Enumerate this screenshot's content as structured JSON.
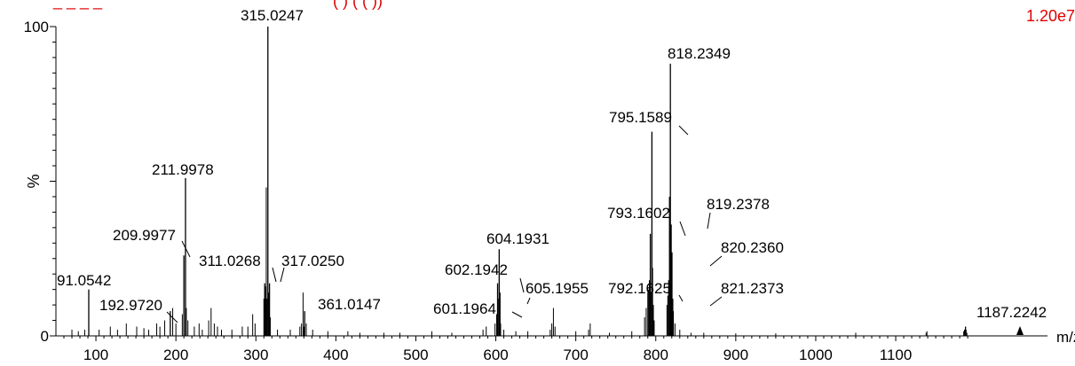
{
  "header": {
    "title_left": "_ _ _ _",
    "title_mid": "(  )   (  (  ))",
    "intensity": "1.20e7",
    "color": "#e00000"
  },
  "chart_data": {
    "type": "bar",
    "xlabel": "m/z",
    "ylabel": "%",
    "xlim": [
      50,
      1200
    ],
    "ylim": [
      0,
      100
    ],
    "x_ticks": [
      100,
      200,
      300,
      400,
      500,
      600,
      700,
      800,
      900,
      1000,
      1100
    ],
    "y_ticks": [
      0,
      100
    ],
    "y_mid_label": "%",
    "peak_color": "#000000",
    "peaks": [
      {
        "mz": 91.0542,
        "value": 15,
        "label": "91.0542"
      },
      {
        "mz": 192.972,
        "value": 8,
        "label": "192.9720"
      },
      {
        "mz": 209.9977,
        "value": 26,
        "label": "209.9977"
      },
      {
        "mz": 211.9978,
        "value": 51,
        "label": "211.9978"
      },
      {
        "mz": 311.0268,
        "value": 17,
        "label": "311.0268"
      },
      {
        "mz": 315.0247,
        "value": 100,
        "label": "315.0247"
      },
      {
        "mz": 317.025,
        "value": 17,
        "label": "317.0250"
      },
      {
        "mz": 361.0147,
        "value": 8,
        "label": "361.0147"
      },
      {
        "mz": 601.1964,
        "value": 7,
        "label": "601.1964"
      },
      {
        "mz": 602.1942,
        "value": 17,
        "label": "602.1942"
      },
      {
        "mz": 604.1931,
        "value": 28,
        "label": "604.1931"
      },
      {
        "mz": 605.1955,
        "value": 14,
        "label": "605.1955"
      },
      {
        "mz": 792.1625,
        "value": 18,
        "label": "792.1625"
      },
      {
        "mz": 793.1602,
        "value": 33,
        "label": "793.1602"
      },
      {
        "mz": 795.1589,
        "value": 66,
        "label": "795.1589"
      },
      {
        "mz": 818.2349,
        "value": 88,
        "label": "818.2349"
      },
      {
        "mz": 819.2378,
        "value": 36,
        "label": "819.2378"
      },
      {
        "mz": 820.236,
        "value": 27,
        "label": "820.2360"
      },
      {
        "mz": 821.2373,
        "value": 12,
        "label": "821.2373"
      },
      {
        "mz": 1187.2242,
        "value": 3,
        "label": "1187.2242"
      }
    ],
    "minor_peaks": [
      {
        "mz": 70,
        "value": 2
      },
      {
        "mz": 78,
        "value": 1.5
      },
      {
        "mz": 86,
        "value": 2
      },
      {
        "mz": 104,
        "value": 2
      },
      {
        "mz": 118,
        "value": 3
      },
      {
        "mz": 127,
        "value": 2
      },
      {
        "mz": 138,
        "value": 4
      },
      {
        "mz": 151,
        "value": 3
      },
      {
        "mz": 160,
        "value": 2.5
      },
      {
        "mz": 166,
        "value": 2
      },
      {
        "mz": 176,
        "value": 4
      },
      {
        "mz": 180,
        "value": 3
      },
      {
        "mz": 186,
        "value": 5
      },
      {
        "mz": 196,
        "value": 9
      },
      {
        "mz": 200,
        "value": 4
      },
      {
        "mz": 208,
        "value": 7
      },
      {
        "mz": 213,
        "value": 9
      },
      {
        "mz": 215,
        "value": 5
      },
      {
        "mz": 223,
        "value": 3
      },
      {
        "mz": 229,
        "value": 4
      },
      {
        "mz": 233,
        "value": 2
      },
      {
        "mz": 241,
        "value": 5
      },
      {
        "mz": 244,
        "value": 9
      },
      {
        "mz": 248,
        "value": 4
      },
      {
        "mz": 252,
        "value": 3
      },
      {
        "mz": 257,
        "value": 2
      },
      {
        "mz": 270,
        "value": 2
      },
      {
        "mz": 283,
        "value": 3
      },
      {
        "mz": 290,
        "value": 3
      },
      {
        "mz": 296,
        "value": 7
      },
      {
        "mz": 299,
        "value": 4
      },
      {
        "mz": 310,
        "value": 12
      },
      {
        "mz": 312,
        "value": 16
      },
      {
        "mz": 313,
        "value": 48
      },
      {
        "mz": 314,
        "value": 12
      },
      {
        "mz": 316,
        "value": 14
      },
      {
        "mz": 318,
        "value": 6
      },
      {
        "mz": 327,
        "value": 2
      },
      {
        "mz": 343,
        "value": 2
      },
      {
        "mz": 355,
        "value": 3
      },
      {
        "mz": 357,
        "value": 4
      },
      {
        "mz": 359,
        "value": 14
      },
      {
        "mz": 360,
        "value": 3
      },
      {
        "mz": 363,
        "value": 4
      },
      {
        "mz": 371,
        "value": 2
      },
      {
        "mz": 390,
        "value": 1.5
      },
      {
        "mz": 415,
        "value": 1.5
      },
      {
        "mz": 430,
        "value": 1
      },
      {
        "mz": 460,
        "value": 1
      },
      {
        "mz": 480,
        "value": 1
      },
      {
        "mz": 520,
        "value": 1.5
      },
      {
        "mz": 545,
        "value": 1
      },
      {
        "mz": 584,
        "value": 2
      },
      {
        "mz": 588,
        "value": 3
      },
      {
        "mz": 599,
        "value": 4
      },
      {
        "mz": 603,
        "value": 12
      },
      {
        "mz": 606,
        "value": 4
      },
      {
        "mz": 610,
        "value": 2
      },
      {
        "mz": 625,
        "value": 1.5
      },
      {
        "mz": 640,
        "value": 1.5
      },
      {
        "mz": 668,
        "value": 2
      },
      {
        "mz": 670,
        "value": 4
      },
      {
        "mz": 672,
        "value": 9
      },
      {
        "mz": 674,
        "value": 3
      },
      {
        "mz": 700,
        "value": 1.5
      },
      {
        "mz": 716,
        "value": 2
      },
      {
        "mz": 718,
        "value": 4
      },
      {
        "mz": 742,
        "value": 1
      },
      {
        "mz": 770,
        "value": 1.5
      },
      {
        "mz": 786,
        "value": 6
      },
      {
        "mz": 788,
        "value": 9
      },
      {
        "mz": 790,
        "value": 14
      },
      {
        "mz": 791,
        "value": 15
      },
      {
        "mz": 794,
        "value": 14
      },
      {
        "mz": 796,
        "value": 22
      },
      {
        "mz": 797,
        "value": 10
      },
      {
        "mz": 798,
        "value": 5
      },
      {
        "mz": 814,
        "value": 10
      },
      {
        "mz": 815,
        "value": 13
      },
      {
        "mz": 816,
        "value": 18
      },
      {
        "mz": 817,
        "value": 45
      },
      {
        "mz": 822,
        "value": 8
      },
      {
        "mz": 824,
        "value": 4
      },
      {
        "mz": 830,
        "value": 2
      },
      {
        "mz": 844,
        "value": 1
      },
      {
        "mz": 860,
        "value": 1
      },
      {
        "mz": 900,
        "value": 0.8
      },
      {
        "mz": 950,
        "value": 0.8
      },
      {
        "mz": 1050,
        "value": 1
      },
      {
        "mz": 1138,
        "value": 1
      },
      {
        "mz": 1139,
        "value": 1.5
      },
      {
        "mz": 1185,
        "value": 1.5
      },
      {
        "mz": 1186,
        "value": 2
      },
      {
        "mz": 1188,
        "value": 2
      },
      {
        "mz": 1189,
        "value": 1
      }
    ]
  }
}
